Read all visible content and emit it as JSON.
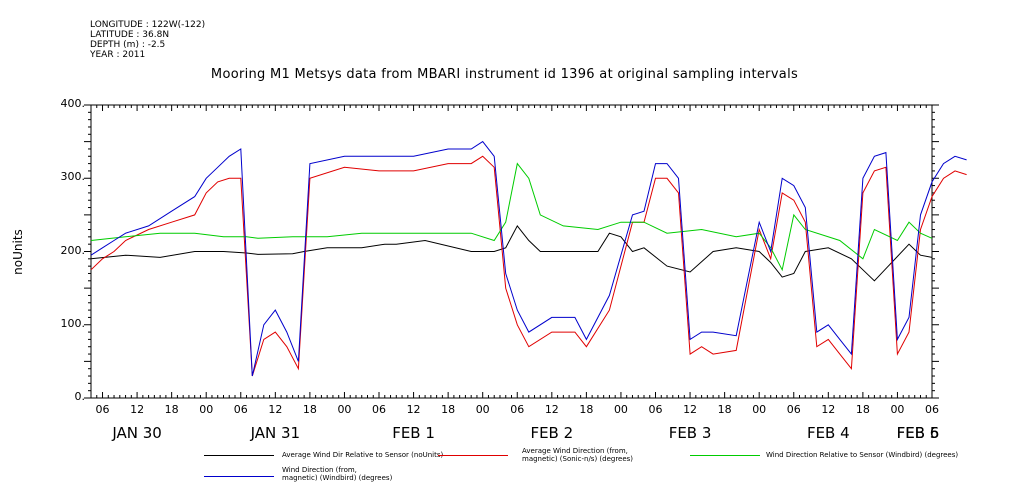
{
  "meta": {
    "longitude": "LONGITUDE : 122W(-122)",
    "latitude": "LATITUDE : 36.8N",
    "depth": "DEPTH (m) : -2.5",
    "year": "YEAR : 2011"
  },
  "chart_data": {
    "type": "line",
    "title": "Mooring M1 Metsys data from MBARI instrument id 1396 at original sampling intervals",
    "ylabel": "noUnits",
    "ylim": [
      0,
      400
    ],
    "yticks": [
      "0.",
      "100.",
      "200.",
      "300.",
      "400."
    ],
    "xlim_hours_from_jan30_00": [
      4,
      150
    ],
    "hour_ticks": [
      "06",
      "12",
      "18",
      "00",
      "06",
      "12",
      "18",
      "00",
      "06",
      "12",
      "18",
      "00",
      "06",
      "12",
      "18",
      "00",
      "06",
      "12",
      "18",
      "00",
      "06",
      "12",
      "18",
      "00",
      "06",
      "12",
      "18",
      "00",
      "06"
    ],
    "day_labels": [
      "JAN 30",
      "JAN 31",
      "FEB  1",
      "FEB  2",
      "FEB  3",
      "FEB  4",
      "FEB  5",
      "FEB  6"
    ],
    "grid": false,
    "legend_position": "bottom",
    "series": [
      {
        "name": "Average Wind Dir Relative to Sensor (noUnits)",
        "color": "#000000",
        "points": [
          [
            4,
            190
          ],
          [
            10,
            195
          ],
          [
            16,
            192
          ],
          [
            22,
            200
          ],
          [
            27,
            200
          ],
          [
            31,
            198
          ],
          [
            33,
            196
          ],
          [
            39,
            197
          ],
          [
            41,
            200
          ],
          [
            45,
            205
          ],
          [
            51,
            205
          ],
          [
            55,
            210
          ],
          [
            57,
            210
          ],
          [
            62,
            215
          ],
          [
            70,
            200
          ],
          [
            74,
            200
          ],
          [
            76,
            205
          ],
          [
            78,
            235
          ],
          [
            80,
            215
          ],
          [
            82,
            200
          ],
          [
            87,
            200
          ],
          [
            92,
            200
          ],
          [
            94,
            225
          ],
          [
            96,
            220
          ],
          [
            98,
            200
          ],
          [
            100,
            205
          ],
          [
            104,
            180
          ],
          [
            108,
            172
          ],
          [
            112,
            200
          ],
          [
            116,
            205
          ],
          [
            120,
            200
          ],
          [
            122,
            185
          ],
          [
            124,
            165
          ],
          [
            126,
            170
          ],
          [
            128,
            200
          ],
          [
            132,
            205
          ],
          [
            136,
            190
          ],
          [
            138,
            175
          ],
          [
            140,
            160
          ],
          [
            143,
            185
          ],
          [
            146,
            210
          ],
          [
            148,
            195
          ],
          [
            150,
            192
          ]
        ]
      },
      {
        "name": "Average Wind Direction (from, magnetic) (Sonic-n/s) (degrees)",
        "color": "#e00000",
        "points": [
          [
            4,
            175
          ],
          [
            6,
            190
          ],
          [
            8,
            200
          ],
          [
            10,
            215
          ],
          [
            14,
            230
          ],
          [
            18,
            240
          ],
          [
            22,
            250
          ],
          [
            24,
            280
          ],
          [
            26,
            295
          ],
          [
            28,
            300
          ],
          [
            30,
            300
          ],
          [
            32,
            30
          ],
          [
            34,
            80
          ],
          [
            36,
            90
          ],
          [
            38,
            70
          ],
          [
            40,
            40
          ],
          [
            42,
            300
          ],
          [
            48,
            315
          ],
          [
            54,
            310
          ],
          [
            60,
            310
          ],
          [
            66,
            320
          ],
          [
            70,
            320
          ],
          [
            72,
            330
          ],
          [
            74,
            315
          ],
          [
            76,
            150
          ],
          [
            78,
            100
          ],
          [
            80,
            70
          ],
          [
            84,
            90
          ],
          [
            88,
            90
          ],
          [
            90,
            70
          ],
          [
            94,
            120
          ],
          [
            98,
            240
          ],
          [
            100,
            240
          ],
          [
            102,
            300
          ],
          [
            104,
            300
          ],
          [
            106,
            280
          ],
          [
            108,
            60
          ],
          [
            110,
            70
          ],
          [
            112,
            60
          ],
          [
            116,
            65
          ],
          [
            120,
            230
          ],
          [
            122,
            190
          ],
          [
            124,
            280
          ],
          [
            126,
            270
          ],
          [
            128,
            240
          ],
          [
            130,
            70
          ],
          [
            132,
            80
          ],
          [
            134,
            60
          ],
          [
            136,
            40
          ],
          [
            138,
            280
          ],
          [
            140,
            310
          ],
          [
            142,
            315
          ],
          [
            144,
            60
          ],
          [
            146,
            90
          ],
          [
            148,
            230
          ],
          [
            150,
            275
          ],
          [
            152,
            300
          ],
          [
            154,
            310
          ],
          [
            156,
            305
          ]
        ]
      },
      {
        "name": "Wind Direction Relative to Sensor (Windbird) (degrees)",
        "color": "#00cc00",
        "points": [
          [
            4,
            215
          ],
          [
            10,
            220
          ],
          [
            16,
            225
          ],
          [
            22,
            225
          ],
          [
            27,
            220
          ],
          [
            31,
            220
          ],
          [
            33,
            218
          ],
          [
            39,
            220
          ],
          [
            45,
            220
          ],
          [
            51,
            225
          ],
          [
            57,
            225
          ],
          [
            62,
            225
          ],
          [
            70,
            225
          ],
          [
            74,
            215
          ],
          [
            76,
            240
          ],
          [
            78,
            320
          ],
          [
            80,
            300
          ],
          [
            82,
            250
          ],
          [
            86,
            235
          ],
          [
            92,
            230
          ],
          [
            96,
            240
          ],
          [
            100,
            240
          ],
          [
            104,
            225
          ],
          [
            110,
            230
          ],
          [
            116,
            220
          ],
          [
            120,
            225
          ],
          [
            122,
            205
          ],
          [
            124,
            175
          ],
          [
            126,
            250
          ],
          [
            128,
            230
          ],
          [
            134,
            215
          ],
          [
            138,
            190
          ],
          [
            140,
            230
          ],
          [
            144,
            215
          ],
          [
            146,
            240
          ],
          [
            148,
            225
          ],
          [
            150,
            218
          ]
        ]
      },
      {
        "name": "Wind Direction (from, magnetic) (Windbird) (degrees)",
        "color": "#0000cc",
        "points": [
          [
            4,
            195
          ],
          [
            6,
            205
          ],
          [
            8,
            215
          ],
          [
            10,
            225
          ],
          [
            14,
            235
          ],
          [
            18,
            255
          ],
          [
            22,
            275
          ],
          [
            24,
            300
          ],
          [
            26,
            315
          ],
          [
            28,
            330
          ],
          [
            30,
            340
          ],
          [
            32,
            30
          ],
          [
            34,
            100
          ],
          [
            36,
            120
          ],
          [
            38,
            90
          ],
          [
            40,
            50
          ],
          [
            42,
            320
          ],
          [
            48,
            330
          ],
          [
            54,
            330
          ],
          [
            60,
            330
          ],
          [
            66,
            340
          ],
          [
            70,
            340
          ],
          [
            72,
            350
          ],
          [
            74,
            330
          ],
          [
            76,
            170
          ],
          [
            78,
            120
          ],
          [
            80,
            90
          ],
          [
            84,
            110
          ],
          [
            88,
            110
          ],
          [
            90,
            80
          ],
          [
            94,
            140
          ],
          [
            98,
            250
          ],
          [
            100,
            255
          ],
          [
            102,
            320
          ],
          [
            104,
            320
          ],
          [
            106,
            300
          ],
          [
            108,
            80
          ],
          [
            110,
            90
          ],
          [
            112,
            90
          ],
          [
            116,
            85
          ],
          [
            120,
            240
          ],
          [
            122,
            200
          ],
          [
            124,
            300
          ],
          [
            126,
            290
          ],
          [
            128,
            260
          ],
          [
            130,
            90
          ],
          [
            132,
            100
          ],
          [
            134,
            80
          ],
          [
            136,
            60
          ],
          [
            138,
            300
          ],
          [
            140,
            330
          ],
          [
            142,
            335
          ],
          [
            144,
            80
          ],
          [
            146,
            110
          ],
          [
            148,
            250
          ],
          [
            150,
            295
          ],
          [
            152,
            320
          ],
          [
            154,
            330
          ],
          [
            156,
            325
          ]
        ]
      }
    ]
  }
}
